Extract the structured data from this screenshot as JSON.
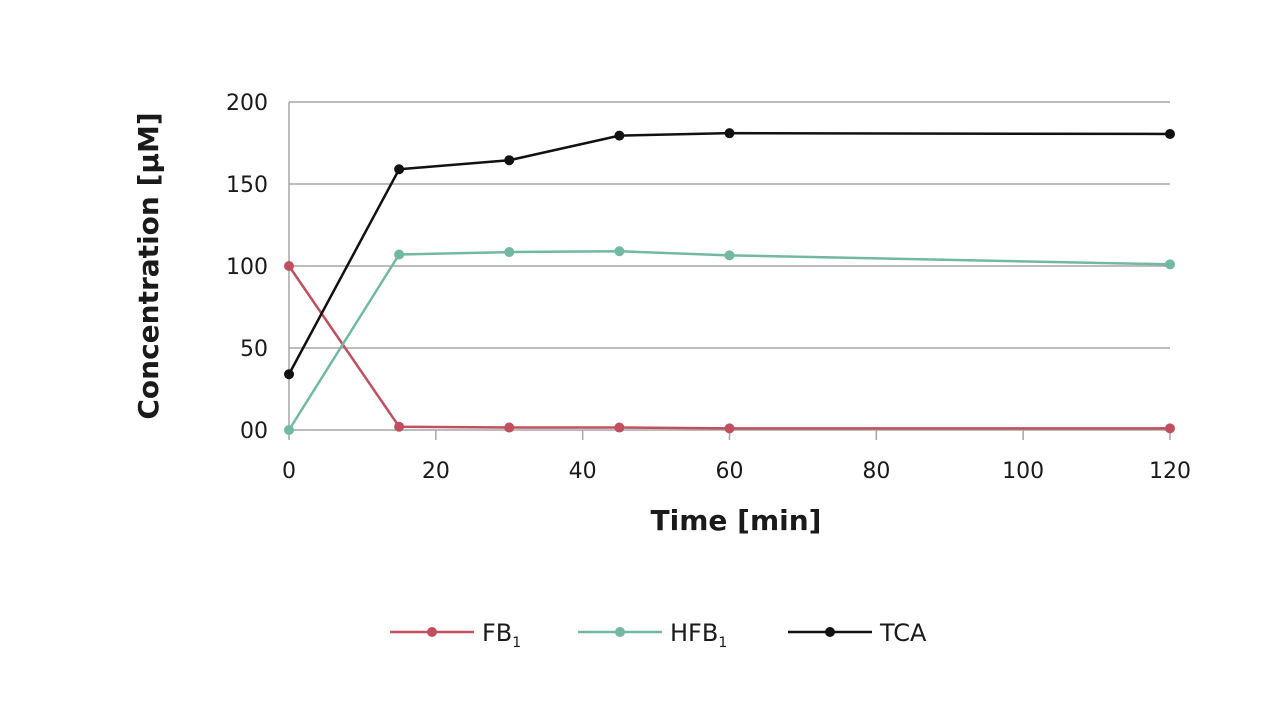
{
  "chart_data": {
    "type": "line",
    "title": "",
    "xlabel": "Time [min]",
    "ylabel": "Concentration [µM]",
    "xlim": [
      0,
      120
    ],
    "ylim": [
      0,
      200
    ],
    "x_ticks": [
      0,
      20,
      40,
      60,
      80,
      100,
      120
    ],
    "x_tick_labels": [
      "0",
      "20",
      "40",
      "60",
      "80",
      "100",
      "120"
    ],
    "y_ticks": [
      0,
      50,
      100,
      150,
      200
    ],
    "y_tick_labels": [
      "00",
      "50",
      "100",
      "150",
      "200"
    ],
    "grid": "horizontal",
    "legend_position": "bottom",
    "series": [
      {
        "name": "FB",
        "subscript": "1",
        "color": "#c0505f",
        "x": [
          0,
          15,
          30,
          45,
          60,
          120
        ],
        "y": [
          100,
          2,
          1.5,
          1.5,
          1,
          1
        ]
      },
      {
        "name": "HFB",
        "subscript": "1",
        "color": "#72b8a2",
        "x": [
          0,
          15,
          30,
          45,
          60,
          120
        ],
        "y": [
          0,
          107,
          108.5,
          109,
          106.5,
          101
        ]
      },
      {
        "name": "TCA",
        "subscript": "",
        "color": "#111111",
        "x": [
          0,
          15,
          30,
          45,
          60,
          120
        ],
        "y": [
          34,
          159,
          164.5,
          179.5,
          181,
          180.5
        ]
      }
    ]
  }
}
